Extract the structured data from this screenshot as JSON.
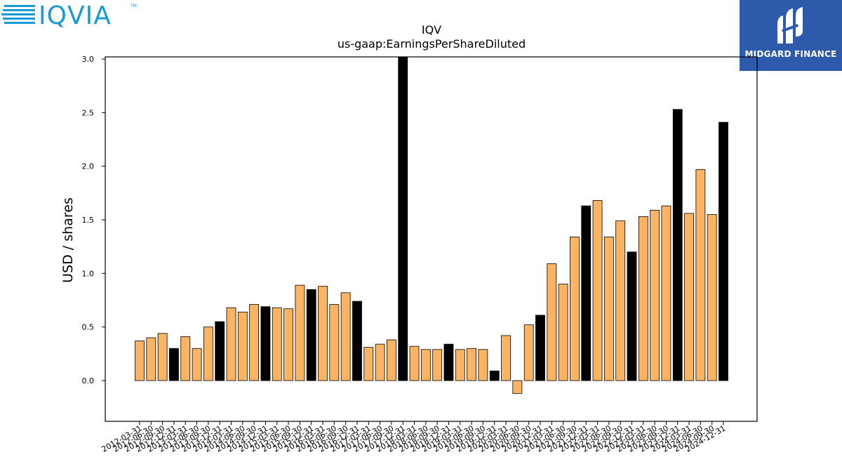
{
  "brand": {
    "left_logo_text": "IQVIA",
    "left_logo_tm": "TM",
    "right_logo_text": "MIDGARD FINANCE",
    "left_logo_color": "#1a9ad6",
    "left_logo_dark": "#0b4f82",
    "right_logo_bg": "#2e5aac"
  },
  "chart_data": {
    "type": "bar",
    "title": "IQV",
    "subtitle": "us-gaap:EarningsPerShareDiluted",
    "xlabel": "",
    "ylabel": "USD / shares",
    "ylim": [
      -0.38,
      3.02
    ],
    "yticks": [
      "0.0",
      "0.5",
      "1.0",
      "1.5",
      "2.0",
      "2.5",
      "3.0"
    ],
    "grid": false,
    "legend": "none",
    "colors": {
      "quarter": "#fdb462",
      "annual": "#000000",
      "edge": "#000000"
    },
    "bars": [
      {
        "date": "2012-03-31",
        "value": 0.37,
        "annual": false
      },
      {
        "date": "2012-06-30",
        "value": 0.4,
        "annual": false
      },
      {
        "date": "2012-09-30",
        "value": 0.44,
        "annual": false
      },
      {
        "date": "2012-12-31",
        "value": 0.3,
        "annual": true
      },
      {
        "date": "2013-03-31",
        "value": 0.41,
        "annual": false
      },
      {
        "date": "2013-06-30",
        "value": 0.3,
        "annual": false
      },
      {
        "date": "2013-09-30",
        "value": 0.5,
        "annual": false
      },
      {
        "date": "2013-12-31",
        "value": 0.55,
        "annual": true
      },
      {
        "date": "2014-03-31",
        "value": 0.68,
        "annual": false
      },
      {
        "date": "2014-06-30",
        "value": 0.64,
        "annual": false
      },
      {
        "date": "2014-09-30",
        "value": 0.71,
        "annual": false
      },
      {
        "date": "2014-12-31",
        "value": 0.69,
        "annual": true
      },
      {
        "date": "2015-03-31",
        "value": 0.68,
        "annual": false
      },
      {
        "date": "2015-06-30",
        "value": 0.67,
        "annual": false
      },
      {
        "date": "2015-09-30",
        "value": 0.89,
        "annual": false
      },
      {
        "date": "2015-12-31",
        "value": 0.85,
        "annual": true
      },
      {
        "date": "2016-03-31",
        "value": 0.88,
        "annual": false
      },
      {
        "date": "2016-06-30",
        "value": 0.71,
        "annual": false
      },
      {
        "date": "2016-09-30",
        "value": 0.82,
        "annual": false
      },
      {
        "date": "2016-12-31",
        "value": 0.74,
        "annual": true
      },
      {
        "date": "2017-03-31",
        "value": 0.31,
        "annual": false
      },
      {
        "date": "2017-06-30",
        "value": 0.34,
        "annual": false
      },
      {
        "date": "2017-09-30",
        "value": 0.38,
        "annual": false
      },
      {
        "date": "2017-12-31",
        "value": 3.02,
        "annual": true
      },
      {
        "date": "2018-03-31",
        "value": 0.32,
        "annual": false
      },
      {
        "date": "2018-06-30",
        "value": 0.29,
        "annual": false
      },
      {
        "date": "2018-09-30",
        "value": 0.29,
        "annual": false
      },
      {
        "date": "2018-12-31",
        "value": 0.34,
        "annual": true
      },
      {
        "date": "2019-03-31",
        "value": 0.29,
        "annual": false
      },
      {
        "date": "2019-06-30",
        "value": 0.3,
        "annual": false
      },
      {
        "date": "2019-09-30",
        "value": 0.29,
        "annual": false
      },
      {
        "date": "2019-12-31",
        "value": 0.09,
        "annual": true
      },
      {
        "date": "2020-03-31",
        "value": 0.42,
        "annual": false
      },
      {
        "date": "2020-06-30",
        "value": -0.12,
        "annual": false
      },
      {
        "date": "2020-09-30",
        "value": 0.52,
        "annual": false
      },
      {
        "date": "2020-12-31",
        "value": 0.61,
        "annual": true
      },
      {
        "date": "2021-03-31",
        "value": 1.09,
        "annual": false
      },
      {
        "date": "2021-06-30",
        "value": 0.9,
        "annual": false
      },
      {
        "date": "2021-09-30",
        "value": 1.34,
        "annual": false
      },
      {
        "date": "2021-12-31",
        "value": 1.63,
        "annual": true
      },
      {
        "date": "2022-03-31",
        "value": 1.68,
        "annual": false
      },
      {
        "date": "2022-06-30",
        "value": 1.34,
        "annual": false
      },
      {
        "date": "2022-09-30",
        "value": 1.49,
        "annual": false
      },
      {
        "date": "2022-12-31",
        "value": 1.2,
        "annual": true
      },
      {
        "date": "2023-03-31",
        "value": 1.53,
        "annual": false
      },
      {
        "date": "2023-06-30",
        "value": 1.59,
        "annual": false
      },
      {
        "date": "2023-09-30",
        "value": 1.63,
        "annual": false
      },
      {
        "date": "2023-12-31",
        "value": 2.53,
        "annual": true
      },
      {
        "date": "2024-03-31",
        "value": 1.56,
        "annual": false
      },
      {
        "date": "2024-06-30",
        "value": 1.97,
        "annual": false
      },
      {
        "date": "2024-09-30",
        "value": 1.55,
        "annual": false
      },
      {
        "date": "2024-12-31",
        "value": 2.41,
        "annual": true
      }
    ]
  }
}
